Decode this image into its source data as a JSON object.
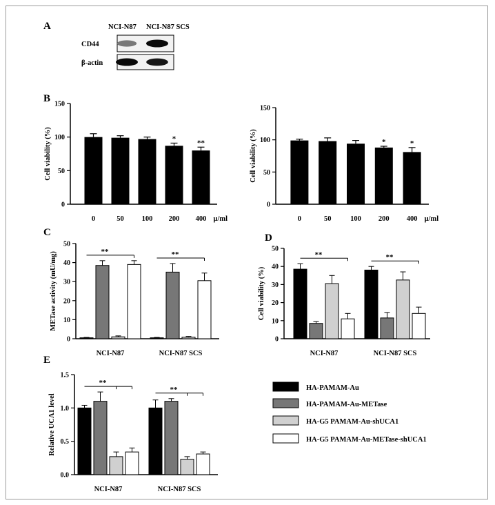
{
  "panel_a": {
    "label": "A",
    "columns": [
      "NCI-N87",
      "NCI-N87 SCS"
    ],
    "rows": [
      {
        "name": "CD44",
        "intensity": [
          0.55,
          1.0
        ]
      },
      {
        "name": "β-actin",
        "intensity": [
          1.0,
          0.95
        ]
      }
    ]
  },
  "legend": {
    "items": [
      {
        "label": "HA-PAMAM-Au",
        "color": "#000000"
      },
      {
        "label": "HA-PAMAM-Au-METase",
        "color": "#777777"
      },
      {
        "label": "HA-G5 PAMAM-Au-shUCA1",
        "color": "#d0d0d0"
      },
      {
        "label": "HA-G5 PAMAM-Au-METase-shUCA1",
        "color": "#ffffff"
      }
    ]
  },
  "chart_data": [
    {
      "id": "B1",
      "panel": "B",
      "type": "bar",
      "ylabel": "Cell viability (%)",
      "ylim": [
        0,
        150
      ],
      "yticks": [
        0,
        50,
        100,
        150
      ],
      "categories": [
        "0",
        "50",
        "100",
        "200",
        "400"
      ],
      "unit": "μ/ml",
      "values": [
        100,
        99,
        97,
        87,
        80
      ],
      "errors": [
        5,
        3,
        3,
        4,
        5
      ],
      "significance": [
        "",
        "",
        "",
        "*",
        "**"
      ]
    },
    {
      "id": "B2",
      "panel": "",
      "type": "bar",
      "ylabel": "Cell viability (%)",
      "ylim": [
        0,
        150
      ],
      "yticks": [
        0,
        50,
        100,
        150
      ],
      "categories": [
        "0",
        "50",
        "100",
        "200",
        "400"
      ],
      "unit": "μ/ml",
      "values": [
        99,
        98,
        94,
        88,
        81
      ],
      "errors": [
        2,
        5,
        5,
        2,
        7
      ],
      "significance": [
        "",
        "",
        "",
        "*",
        "*"
      ]
    },
    {
      "id": "C",
      "panel": "C",
      "type": "bar",
      "ylabel": "METase activity (mU/mg)",
      "ylim": [
        0,
        50
      ],
      "yticks": [
        0,
        10,
        20,
        30,
        40,
        50
      ],
      "categories": [
        "NCI-N87",
        "NCI-N87 SCS"
      ],
      "series": [
        {
          "name": "HA-PAMAM-Au",
          "values": [
            0.5,
            0.5
          ],
          "errors": [
            0.2,
            0.2
          ]
        },
        {
          "name": "HA-PAMAM-Au-METase",
          "values": [
            38.5,
            35
          ],
          "errors": [
            2.5,
            4.5
          ]
        },
        {
          "name": "HA-G5 PAMAM-Au-shUCA1",
          "values": [
            1,
            0.8
          ],
          "errors": [
            0.5,
            0.4
          ]
        },
        {
          "name": "HA-G5 PAMAM-Au-METase-shUCA1",
          "values": [
            39,
            30.5
          ],
          "errors": [
            2,
            4
          ]
        }
      ],
      "significance": [
        "**",
        "**"
      ]
    },
    {
      "id": "D",
      "panel": "D",
      "type": "bar",
      "ylabel": "Cell viability (%)",
      "ylim": [
        0,
        50
      ],
      "yticks": [
        0,
        10,
        20,
        30,
        40,
        50
      ],
      "categories": [
        "NCI-N87",
        "NCI-N87 SCS"
      ],
      "series": [
        {
          "name": "HA-PAMAM-Au",
          "values": [
            38.5,
            38
          ],
          "errors": [
            3,
            2
          ]
        },
        {
          "name": "HA-PAMAM-Au-METase",
          "values": [
            8.5,
            11.5
          ],
          "errors": [
            1,
            3
          ]
        },
        {
          "name": "HA-G5 PAMAM-Au-shUCA1",
          "values": [
            30.5,
            32.5
          ],
          "errors": [
            4.5,
            4.5
          ]
        },
        {
          "name": "HA-G5 PAMAM-Au-METase-shUCA1",
          "values": [
            11,
            14
          ],
          "errors": [
            3,
            3.5
          ]
        }
      ],
      "significance": [
        "**",
        "**"
      ]
    },
    {
      "id": "E",
      "panel": "E",
      "type": "bar",
      "ylabel": "Relative UCA1 level",
      "ylim": [
        0,
        1.5
      ],
      "yticks": [
        "0.0",
        "0.5",
        "1.0",
        "1.5"
      ],
      "categories": [
        "NCI-N87",
        "NCI-N87 SCS"
      ],
      "series": [
        {
          "name": "HA-PAMAM-Au",
          "values": [
            1.0,
            1.0
          ],
          "errors": [
            0.04,
            0.12
          ]
        },
        {
          "name": "HA-PAMAM-Au-METase",
          "values": [
            1.1,
            1.1
          ],
          "errors": [
            0.14,
            0.04
          ]
        },
        {
          "name": "HA-G5 PAMAM-Au-shUCA1",
          "values": [
            0.27,
            0.23
          ],
          "errors": [
            0.07,
            0.04
          ]
        },
        {
          "name": "HA-G5 PAMAM-Au-METase-shUCA1",
          "values": [
            0.34,
            0.31
          ],
          "errors": [
            0.06,
            0.03
          ]
        }
      ],
      "significance": [
        "**",
        "**"
      ]
    }
  ]
}
